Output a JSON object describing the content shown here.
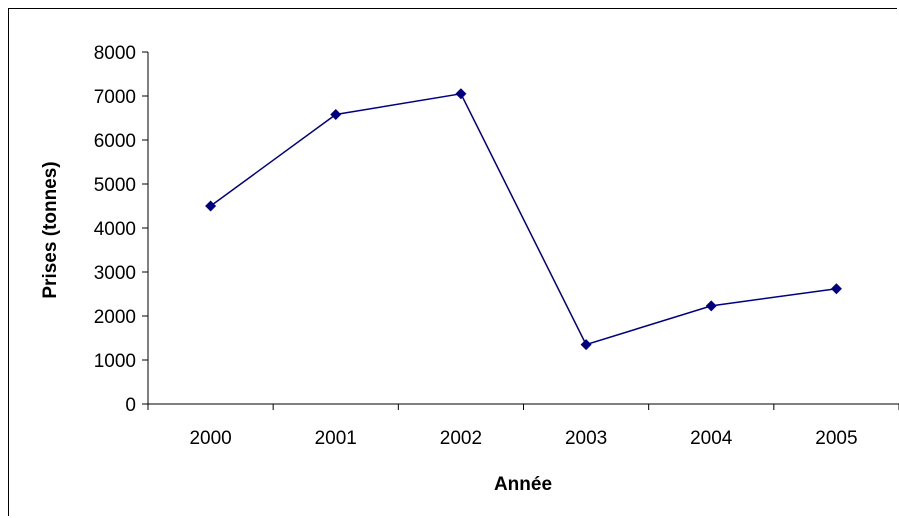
{
  "chart_data": {
    "type": "line",
    "title": "",
    "xlabel": "Année",
    "ylabel": "Prises (tonnes)",
    "categories": [
      "2000",
      "2001",
      "2002",
      "2003",
      "2004",
      "2005"
    ],
    "series": [
      {
        "values": [
          4500,
          6580,
          7050,
          1350,
          2230,
          2620
        ]
      }
    ],
    "ylim": [
      0,
      8000
    ],
    "yticks": [
      0,
      1000,
      2000,
      3000,
      4000,
      5000,
      6000,
      7000,
      8000
    ],
    "grid": false,
    "legend": "none",
    "colors": {
      "series": "#000080",
      "axis": "#000000"
    }
  }
}
